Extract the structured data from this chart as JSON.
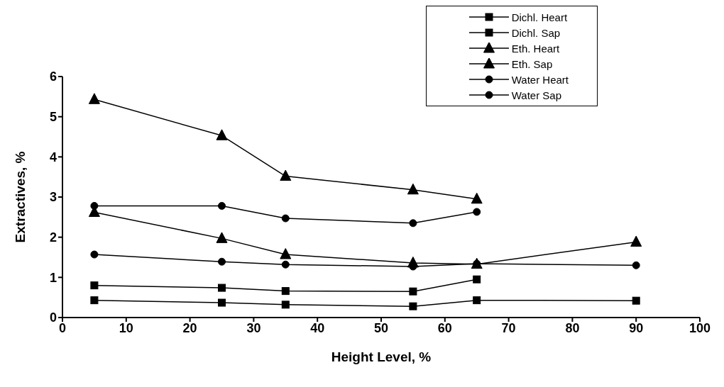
{
  "chart_data": {
    "type": "line",
    "xlabel": "Height Level, %",
    "ylabel": "Extractives, %",
    "x": [
      5,
      25,
      35,
      55,
      65,
      90
    ],
    "xlim": [
      0,
      100
    ],
    "xticks": [
      0,
      10,
      20,
      30,
      40,
      50,
      60,
      70,
      80,
      90,
      100
    ],
    "ylim": [
      0,
      6
    ],
    "yticks": [
      0,
      1,
      2,
      3,
      4,
      5,
      6
    ],
    "grid": false,
    "legend": "top right",
    "line_style": "solid",
    "series": [
      {
        "name": "Dichl. Heart",
        "color": "#000000",
        "marker": "square",
        "values": [
          0.8,
          0.74,
          0.66,
          0.65,
          0.95,
          null
        ]
      },
      {
        "name": "Dichl. Sap",
        "color": "#000000",
        "marker": "square",
        "values": [
          0.43,
          0.37,
          0.32,
          0.28,
          0.43,
          0.42
        ]
      },
      {
        "name": "Eth. Heart",
        "color": "#000000",
        "marker": "triangle",
        "values": [
          5.43,
          4.53,
          3.52,
          3.18,
          2.95,
          null
        ]
      },
      {
        "name": "Eth. Sap",
        "color": "#000000",
        "marker": "triangle",
        "values": [
          2.62,
          1.97,
          1.57,
          1.36,
          1.33,
          1.88
        ]
      },
      {
        "name": "Water Heart",
        "color": "#000000",
        "marker": "circle",
        "values": [
          2.78,
          2.78,
          2.47,
          2.35,
          2.63,
          null
        ]
      },
      {
        "name": "Water Sap",
        "color": "#000000",
        "marker": "circle",
        "values": [
          1.57,
          1.39,
          1.32,
          1.27,
          1.34,
          1.3
        ]
      }
    ]
  }
}
